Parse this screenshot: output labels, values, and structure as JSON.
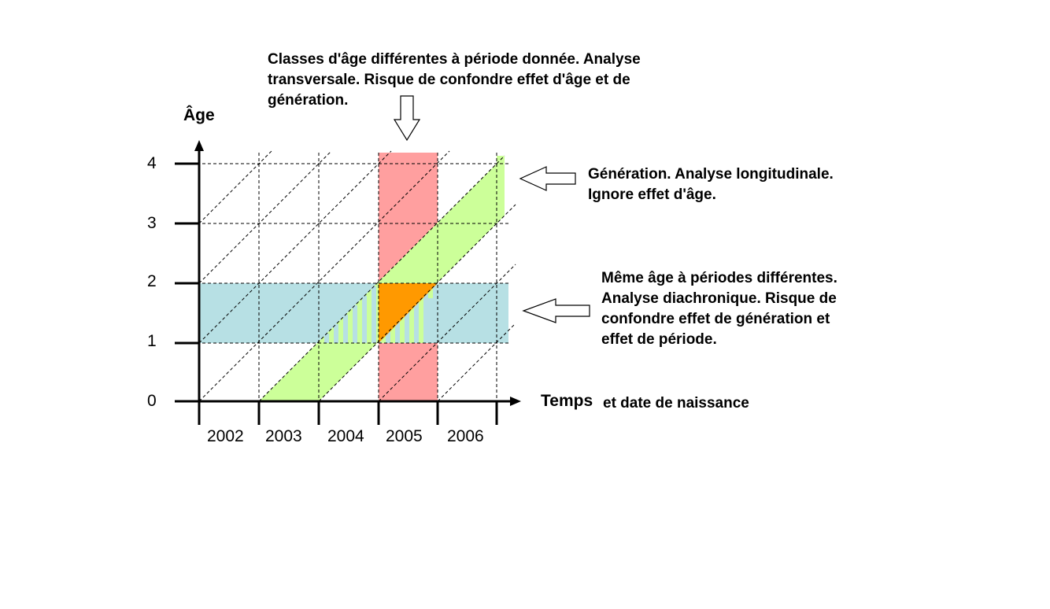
{
  "axes": {
    "y_label": "Âge",
    "x_label": "Temps",
    "x_label_suffix": "et date de naissance",
    "y_ticks": [
      "0",
      "1",
      "2",
      "3",
      "4"
    ],
    "x_ticks": [
      "2002",
      "2003",
      "2004",
      "2005",
      "2006"
    ]
  },
  "annotations": {
    "period": [
      "Classes d'âge différentes à période donnée. Analyse",
      "transversale. Risque de confondre effet d'âge et de",
      "génération."
    ],
    "cohort": [
      "Génération. Analyse longitudinale.",
      "Ignore effet d'âge."
    ],
    "age": [
      "Même âge à périodes différentes.",
      "Analyse diachronique. Risque de",
      "confondre effet de génération et",
      "effet de période."
    ]
  },
  "bands": {
    "period_year": "2005",
    "age_range": [
      1,
      2
    ],
    "cohort_birth_year": "2003"
  },
  "colors": {
    "period_band": "#ff9f9f",
    "age_band": "#b7e0e4",
    "cohort_band": "#ccff99",
    "overlap": "#ff9900"
  }
}
